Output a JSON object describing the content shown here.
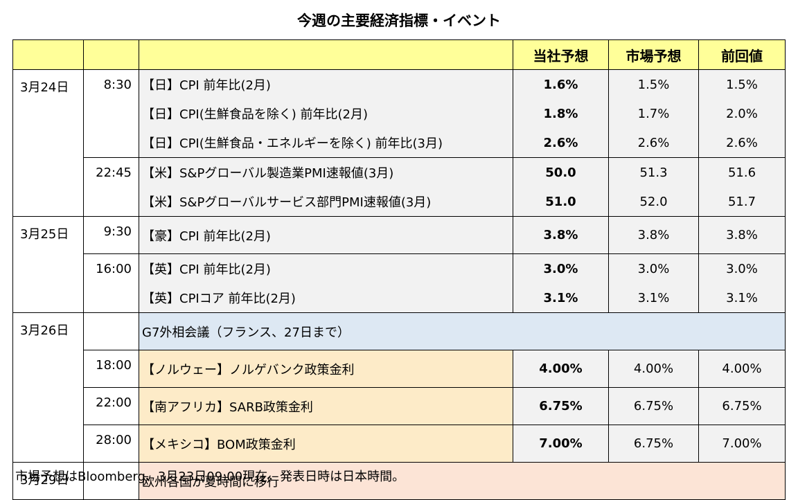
{
  "title": "今週の主要経済指標・イベント",
  "header": [
    "当社予想",
    "市場予想",
    "前回値"
  ],
  "groups": [
    {
      "date": "3月24日",
      "slots": [
        {
          "time": "8:30",
          "rows": [
            {
              "event": "【日】CPI 前年比(2月)",
              "ours": "1.6%",
              "market": "1.5%",
              "prev": "1.5%"
            },
            {
              "event": "【日】CPI(生鮮食品を除く) 前年比(2月)",
              "ours": "1.8%",
              "market": "1.7%",
              "prev": "2.0%"
            },
            {
              "event": "【日】CPI(生鮮食品・エネルギーを除く) 前年比(3月)",
              "ours": "2.6%",
              "market": "2.6%",
              "prev": "2.6%"
            }
          ]
        },
        {
          "time": "22:45",
          "rows": [
            {
              "event": "【米】S&Pグローバル製造業PMI速報値(3月)",
              "ours": "50.0",
              "market": "51.3",
              "prev": "51.6"
            },
            {
              "event": "【米】S&Pグローバルサービス部門PMI速報値(3月)",
              "ours": "51.0",
              "market": "52.0",
              "prev": "51.7"
            }
          ]
        }
      ]
    },
    {
      "date": "3月25日",
      "slots": [
        {
          "time": "9:30",
          "rows": [
            {
              "event": "【豪】CPI 前年比(2月)",
              "ours": "3.8%",
              "market": "3.8%",
              "prev": "3.8%"
            }
          ]
        },
        {
          "time": "16:00",
          "rows": [
            {
              "event": "【英】CPI 前年比(2月)",
              "ours": "3.0%",
              "market": "3.0%",
              "prev": "3.0%"
            },
            {
              "event": "【英】CPIコア 前年比(2月)",
              "ours": "3.1%",
              "market": "3.1%",
              "prev": "3.1%"
            }
          ]
        }
      ]
    },
    {
      "date": "3月26日",
      "slots": [
        {
          "rows": [
            {
              "event": "G7外相会議（フランス、27日まで）",
              "color": "#dde8f3"
            }
          ]
        },
        {
          "time": "18:00",
          "rows": [
            {
              "event": "【ノルウェー】ノルゲバンク政策金利",
              "ours": "4.00%",
              "market": "4.00%",
              "prev": "4.00%",
              "color": "#fdebc8"
            }
          ]
        },
        {
          "time": "22:00",
          "rows": [
            {
              "event": "【南アフリカ】SARB政策金利",
              "ours": "6.75%",
              "market": "6.75%",
              "prev": "6.75%",
              "color": "#fdebc8"
            }
          ]
        },
        {
          "time": "28:00",
          "rows": [
            {
              "event": "【メキシコ】BOM政策金利",
              "ours": "7.00%",
              "market": "6.75%",
              "prev": "7.00%",
              "color": "#fdebc8"
            }
          ]
        }
      ]
    },
    {
      "date": "3月29日",
      "slots": [
        {
          "rows": [
            {
              "event": "欧州各国が夏時間に移行",
              "color": "#fce4d6"
            }
          ]
        }
      ]
    }
  ],
  "note": "市場予想はBloomberg、3月23日09:00現在。発表日時は日本時間。"
}
